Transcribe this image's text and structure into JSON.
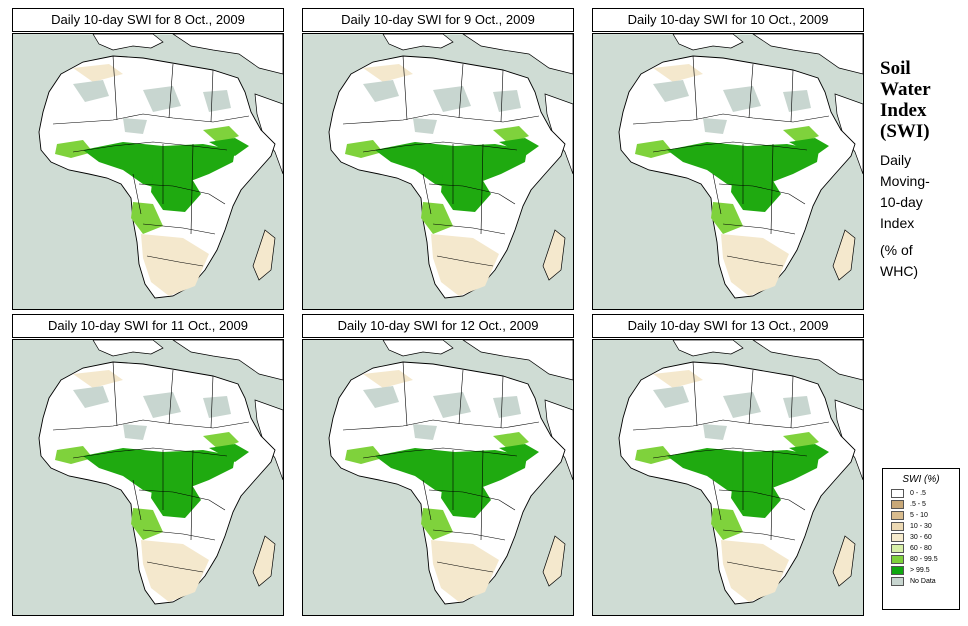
{
  "panels": [
    {
      "title": "Daily 10-day SWI for  8 Oct., 2009"
    },
    {
      "title": "Daily 10-day SWI for  9 Oct., 2009"
    },
    {
      "title": "Daily 10-day SWI for  10 Oct., 2009"
    },
    {
      "title": "Daily 10-day SWI for  11 Oct., 2009"
    },
    {
      "title": "Daily 10-day SWI for  12 Oct., 2009"
    },
    {
      "title": "Daily 10-day SWI for  13 Oct., 2009"
    }
  ],
  "side": {
    "title_lines": [
      "Soil",
      "Water",
      "Index",
      "(SWI)"
    ],
    "desc_lines": [
      "Daily",
      "Moving-",
      "10-day",
      "Index"
    ],
    "unit_lines": [
      "(% of",
      " WHC)"
    ]
  },
  "legend": {
    "title": "SWI (%)",
    "items": [
      {
        "label": "0 - .5",
        "color": "#ffffff"
      },
      {
        "label": ".5 - 5",
        "color": "#c8a878"
      },
      {
        "label": "5 - 10",
        "color": "#d9bc8e"
      },
      {
        "label": "10 - 30",
        "color": "#ecd9b4"
      },
      {
        "label": "30 - 60",
        "color": "#f6ebcd"
      },
      {
        "label": "60 - 80",
        "color": "#d8f0a8"
      },
      {
        "label": "80 - 99.5",
        "color": "#7fd23c"
      },
      {
        "label": "> 99.5",
        "color": "#10a810"
      },
      {
        "label": "No Data",
        "color": "#c8d6d0"
      }
    ]
  },
  "colors": {
    "ocean": "#cfdcd4",
    "land_dry": "#f4e8cd",
    "land_white": "#ffffff",
    "wet": "#1faa10",
    "moist": "#7fd23c",
    "nodata": "#c8d6d0"
  }
}
